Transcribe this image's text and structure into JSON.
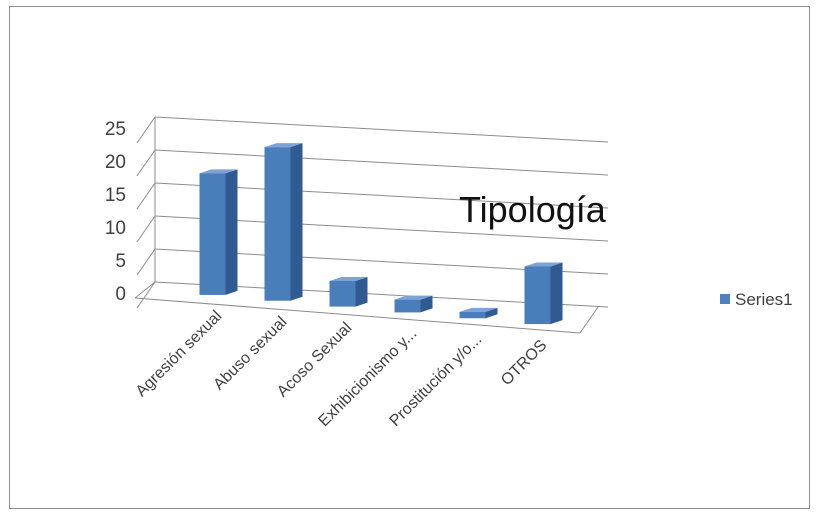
{
  "chart_data": {
    "type": "bar",
    "title": "Tipología",
    "categories": [
      "Agresión sexual",
      "Abuso sexual",
      "Acoso Sexual",
      "Exhibicionismo y...",
      "Prostitución y/o...",
      "OTROS"
    ],
    "series": [
      {
        "name": "Series1",
        "values": [
          19,
          24,
          4,
          2,
          1,
          9
        ]
      }
    ],
    "yticks": [
      "0",
      "5",
      "10",
      "15",
      "20",
      "25"
    ],
    "ylim": [
      0,
      25
    ],
    "grid": true,
    "legend_position": "right",
    "three_d": true,
    "colors": {
      "bar_front": "#4a7ebb",
      "bar_side": "#2f5a92",
      "bar_top": "#7da2d6",
      "legend_swatch": "#4f81bd"
    }
  }
}
